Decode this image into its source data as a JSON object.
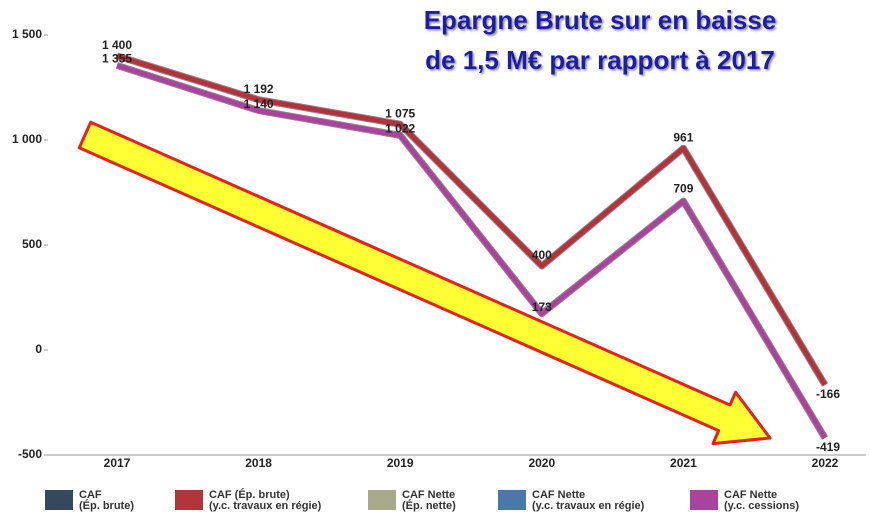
{
  "chart_data": {
    "type": "line",
    "annotation": [
      "Epargne Brute sur en baisse",
      "de 1,5 M€ par rapport à 2017"
    ],
    "categories": [
      "2017",
      "2018",
      "2019",
      "2020",
      "2021",
      "2022"
    ],
    "ylim": [
      -500,
      1500
    ],
    "yticks": [
      -500,
      0,
      500,
      {
        "value": 1000,
        "label": "1 000"
      },
      {
        "value": 1500,
        "label": "1 500"
      }
    ],
    "series": [
      {
        "name": [
          "CAF",
          "(Ép. brute)"
        ],
        "color": "#34495e",
        "values": [
          null,
          null,
          null,
          null,
          null,
          null
        ]
      },
      {
        "name": [
          "CAF (Ép. brute)",
          "(y.c. travaux en régie)"
        ],
        "color": "#b0343a",
        "values": [
          1400,
          1192,
          1075,
          400,
          961,
          -166
        ],
        "value_labels": [
          "1 400",
          "1 192",
          "1 075",
          "400",
          "961",
          "-166"
        ]
      },
      {
        "name": [
          "CAF Nette",
          "(Ép. nette)"
        ],
        "color": "#a8a88a",
        "values": [
          null,
          null,
          null,
          null,
          null,
          null
        ]
      },
      {
        "name": [
          "CAF Nette",
          "(y.c. travaux en régie)"
        ],
        "color": "#4a78a8",
        "values": [
          null,
          null,
          null,
          null,
          null,
          null
        ]
      },
      {
        "name": [
          "CAF Nette",
          "(y.c. cessions)"
        ],
        "color": "#a8449c",
        "values": [
          1355,
          1140,
          1022,
          173,
          709,
          -419
        ],
        "value_labels": [
          "1 355",
          "1 140",
          "1 022",
          "173",
          "709",
          "-419"
        ]
      }
    ]
  }
}
